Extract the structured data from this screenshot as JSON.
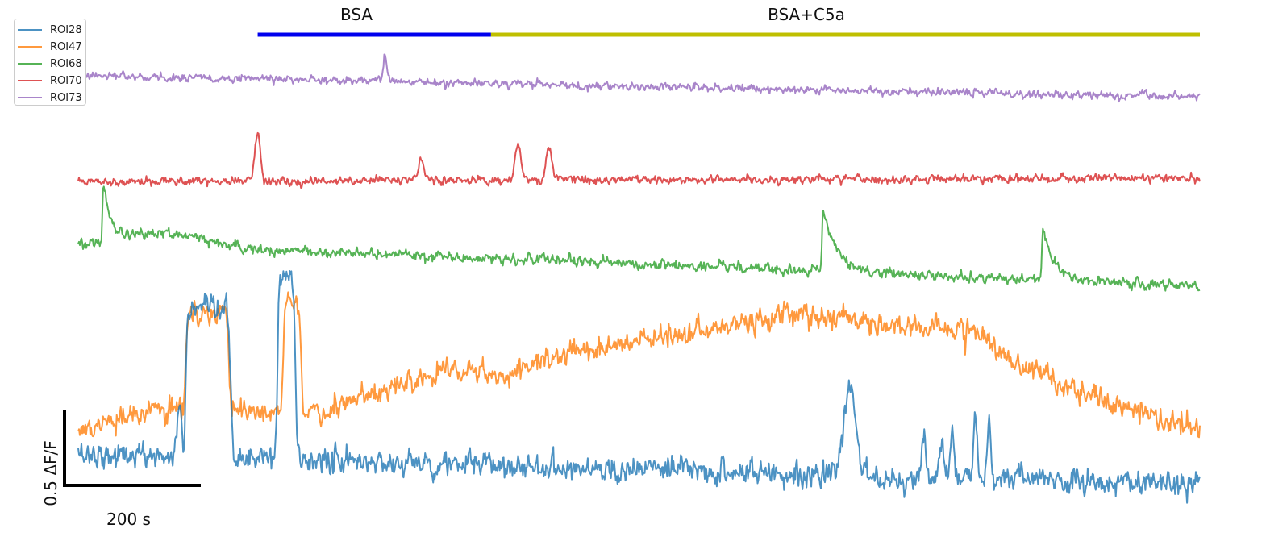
{
  "chart_data": {
    "type": "line",
    "title": "",
    "xlabel": "",
    "ylabel": "",
    "scale_bar": {
      "x_value": 200,
      "x_label": "200 s",
      "y_value": 0.5,
      "y_label": "0.5 ΔF/F"
    },
    "conditions": [
      {
        "label": "BSA",
        "start": 200,
        "end": 460,
        "color": "#0000ee"
      },
      {
        "label": "BSA+C5a",
        "start": 460,
        "end": 1250,
        "color": "#bfbf00"
      }
    ],
    "x_range": [
      0,
      1250
    ],
    "legend_position": "top-left",
    "series": [
      {
        "name": "ROI28",
        "color": "#1f77b4",
        "baseline": 0.3,
        "end": 0.1,
        "noise": 0.038,
        "opacity": 0.8,
        "events": [
          {
            "t": 113,
            "amp": 0.4,
            "kind": "spike",
            "width": 2
          },
          {
            "t": 120,
            "amp": 0.95,
            "kind": "plateau",
            "width": 50
          },
          {
            "t": 222,
            "amp": 1.2,
            "kind": "plateau",
            "width": 20
          },
          {
            "t": 860,
            "amp": 0.6,
            "kind": "spike",
            "width": 6
          },
          {
            "t": 942,
            "amp": 0.25,
            "kind": "spike",
            "width": 2
          },
          {
            "t": 962,
            "amp": 0.2,
            "kind": "spike",
            "width": 2
          },
          {
            "t": 974,
            "amp": 0.3,
            "kind": "spike",
            "width": 2
          },
          {
            "t": 1000,
            "amp": 0.4,
            "kind": "spike",
            "width": 2
          },
          {
            "t": 1015,
            "amp": 0.4,
            "kind": "spike",
            "width": 2
          }
        ]
      },
      {
        "name": "ROI47",
        "color": "#ff7f0e",
        "baseline": 0.6,
        "end": 0.45,
        "noise": 0.035,
        "opacity": 0.8,
        "ramp": [
          [
            0,
            0.45
          ],
          [
            120,
            0.62
          ],
          [
            180,
            0.6
          ],
          [
            240,
            0.55
          ],
          [
            300,
            0.62
          ],
          [
            420,
            0.88
          ],
          [
            470,
            0.82
          ],
          [
            560,
            0.98
          ],
          [
            650,
            1.05
          ],
          [
            800,
            1.22
          ],
          [
            900,
            1.15
          ],
          [
            1000,
            1.1
          ],
          [
            1050,
            0.88
          ],
          [
            1150,
            0.62
          ],
          [
            1250,
            0.45
          ]
        ],
        "events": [
          {
            "t": 120,
            "amp": 0.6,
            "kind": "plateau",
            "width": 48
          },
          {
            "t": 228,
            "amp": 0.75,
            "kind": "plateau",
            "width": 20
          }
        ]
      },
      {
        "name": "ROI68",
        "color": "#2ca02c",
        "baseline": 1.68,
        "end": 1.4,
        "noise": 0.016,
        "opacity": 0.8,
        "events": [
          {
            "t": 28,
            "amp": 0.35,
            "kind": "transient",
            "width": 10
          },
          {
            "t": 100,
            "amp": 0.08,
            "kind": "bump",
            "width": 40
          },
          {
            "t": 830,
            "amp": 0.4,
            "kind": "transient",
            "width": 15
          },
          {
            "t": 1075,
            "amp": 0.35,
            "kind": "transient",
            "width": 12
          }
        ]
      },
      {
        "name": "ROI70",
        "color": "#d62728",
        "baseline": 2.08,
        "end": 2.1,
        "noise": 0.013,
        "opacity": 0.8,
        "events": [
          {
            "t": 200,
            "amp": 0.33,
            "kind": "spike",
            "width": 3
          },
          {
            "t": 382,
            "amp": 0.14,
            "kind": "spike",
            "width": 3
          },
          {
            "t": 490,
            "amp": 0.26,
            "kind": "spike",
            "width": 3
          },
          {
            "t": 525,
            "amp": 0.22,
            "kind": "spike",
            "width": 3
          }
        ]
      },
      {
        "name": "ROI73",
        "color": "#9467bd",
        "baseline": 2.77,
        "end": 2.63,
        "noise": 0.012,
        "opacity": 0.8,
        "events": [
          {
            "t": 342,
            "amp": 0.17,
            "kind": "spike",
            "width": 2
          },
          {
            "t": 480,
            "amp": -0.05,
            "kind": "spike",
            "width": 1
          }
        ]
      }
    ]
  }
}
